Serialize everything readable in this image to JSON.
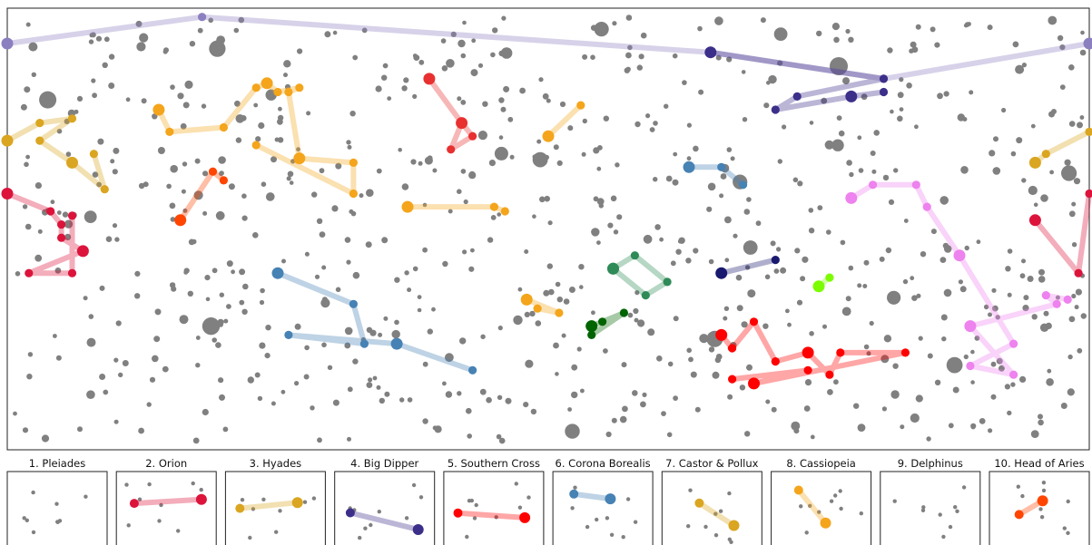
{
  "chart_data": {
    "type": "scatter",
    "grid": false,
    "main_panel": {
      "xlim": [
        0,
        1
      ],
      "ylim": [
        0,
        1
      ],
      "background_star_color": "#808080",
      "highlighted_groups": [
        {
          "color": "#8c7fc0",
          "points": [
            [
              0,
              0.92
            ],
            [
              0.18,
              0.98
            ],
            [
              0.65,
              0.9
            ],
            [
              0.81,
              0.84
            ],
            [
              1,
              0.92
            ]
          ]
        },
        {
          "color": "#3c2f8a",
          "points": [
            [
              0.65,
              0.9
            ],
            [
              0.81,
              0.84
            ],
            [
              0.73,
              0.8
            ],
            [
              0.71,
              0.77
            ],
            [
              0.78,
              0.8
            ],
            [
              0.81,
              0.81
            ]
          ]
        },
        {
          "color": "#daa520",
          "points": [
            [
              0,
              0.7
            ],
            [
              0.03,
              0.74
            ],
            [
              0.06,
              0.75
            ],
            [
              0.03,
              0.7
            ],
            [
              0.06,
              0.65
            ],
            [
              0.09,
              0.59
            ],
            [
              0.08,
              0.67
            ]
          ]
        },
        {
          "color": "#f4a51c",
          "points": [
            [
              0.14,
              0.77
            ],
            [
              0.15,
              0.72
            ],
            [
              0.2,
              0.73
            ],
            [
              0.23,
              0.82
            ],
            [
              0.24,
              0.83
            ],
            [
              0.25,
              0.81
            ],
            [
              0.27,
              0.82
            ],
            [
              0.26,
              0.81
            ],
            [
              0.27,
              0.66
            ],
            [
              0.32,
              0.65
            ],
            [
              0.32,
              0.58
            ],
            [
              0.23,
              0.69
            ]
          ]
        },
        {
          "color": "#e83030",
          "points": [
            [
              0.39,
              0.84
            ],
            [
              0.42,
              0.74
            ],
            [
              0.43,
              0.71
            ],
            [
              0.41,
              0.68
            ],
            [
              0.42,
              0.74
            ]
          ]
        },
        {
          "color": "#ff4500",
          "points": [
            [
              0.16,
              0.52
            ],
            [
              0.19,
              0.63
            ],
            [
              0.2,
              0.61
            ]
          ]
        },
        {
          "color": "#f4a51c",
          "points": [
            [
              0.37,
              0.55
            ],
            [
              0.45,
              0.55
            ],
            [
              0.46,
              0.54
            ]
          ]
        },
        {
          "color": "#f4a51c",
          "points": [
            [
              0.5,
              0.71
            ],
            [
              0.53,
              0.78
            ]
          ]
        },
        {
          "color": "#4682b4",
          "points": [
            [
              0.63,
              0.64
            ],
            [
              0.66,
              0.64
            ],
            [
              0.68,
              0.6
            ]
          ]
        },
        {
          "color": "#dc143c",
          "points": [
            [
              0,
              0.58
            ],
            [
              0.04,
              0.54
            ],
            [
              0.05,
              0.51
            ],
            [
              0.05,
              0.48
            ],
            [
              0.07,
              0.45
            ],
            [
              0.02,
              0.4
            ],
            [
              0.06,
              0.4
            ],
            [
              0.06,
              0.53
            ]
          ]
        },
        {
          "color": "#4682b4",
          "points": [
            [
              0.25,
              0.4
            ],
            [
              0.32,
              0.33
            ],
            [
              0.33,
              0.24
            ],
            [
              0.26,
              0.26
            ],
            [
              0.36,
              0.24
            ],
            [
              0.43,
              0.18
            ]
          ]
        },
        {
          "color": "#2e8b57",
          "points": [
            [
              0.56,
              0.41
            ],
            [
              0.58,
              0.44
            ],
            [
              0.61,
              0.38
            ],
            [
              0.59,
              0.35
            ],
            [
              0.56,
              0.41
            ]
          ]
        },
        {
          "color": "#006400",
          "points": [
            [
              0.54,
              0.28
            ],
            [
              0.55,
              0.29
            ],
            [
              0.57,
              0.31
            ],
            [
              0.54,
              0.26
            ]
          ]
        },
        {
          "color": "#f4a51c",
          "points": [
            [
              0.48,
              0.34
            ],
            [
              0.51,
              0.31
            ],
            [
              0.49,
              0.32
            ]
          ]
        },
        {
          "color": "#191970",
          "points": [
            [
              0.66,
              0.4
            ],
            [
              0.71,
              0.43
            ]
          ]
        },
        {
          "color": "#7cfc00",
          "points": [
            [
              0.75,
              0.37
            ],
            [
              0.76,
              0.39
            ]
          ]
        },
        {
          "color": "#ee82ee",
          "points": [
            [
              0.78,
              0.57
            ],
            [
              0.8,
              0.6
            ],
            [
              0.84,
              0.6
            ],
            [
              0.85,
              0.55
            ],
            [
              0.88,
              0.44
            ],
            [
              0.93,
              0.24
            ],
            [
              0.89,
              0.19
            ],
            [
              0.93,
              0.17
            ],
            [
              0.89,
              0.28
            ],
            [
              0.97,
              0.33
            ],
            [
              0.96,
              0.35
            ],
            [
              0.98,
              0.34
            ]
          ]
        },
        {
          "color": "#ff0000",
          "points": [
            [
              0.66,
              0.26
            ],
            [
              0.67,
              0.23
            ],
            [
              0.69,
              0.29
            ],
            [
              0.71,
              0.2
            ],
            [
              0.74,
              0.22
            ],
            [
              0.76,
              0.17
            ],
            [
              0.77,
              0.22
            ],
            [
              0.83,
              0.22
            ],
            [
              0.69,
              0.15
            ],
            [
              0.74,
              0.18
            ],
            [
              0.67,
              0.16
            ]
          ]
        },
        {
          "color": "#daa520",
          "points": [
            [
              0.95,
              0.65
            ],
            [
              0.96,
              0.67
            ],
            [
              1,
              0.72
            ]
          ]
        },
        {
          "color": "#dc143c",
          "points": [
            [
              0.95,
              0.52
            ],
            [
              0.99,
              0.4
            ],
            [
              1,
              0.58
            ]
          ]
        }
      ]
    },
    "subplots": [
      {
        "title": "1. Pleiades"
      },
      {
        "title": "2. Orion"
      },
      {
        "title": "3. Hyades"
      },
      {
        "title": "4. Big Dipper"
      },
      {
        "title": "5. Southern Cross"
      },
      {
        "title": "6. Corona Borealis"
      },
      {
        "title": "7. Castor & Pollux"
      },
      {
        "title": "8. Cassiopeia"
      },
      {
        "title": "9. Delphinus"
      },
      {
        "title": "10. Head of Aries"
      }
    ]
  }
}
